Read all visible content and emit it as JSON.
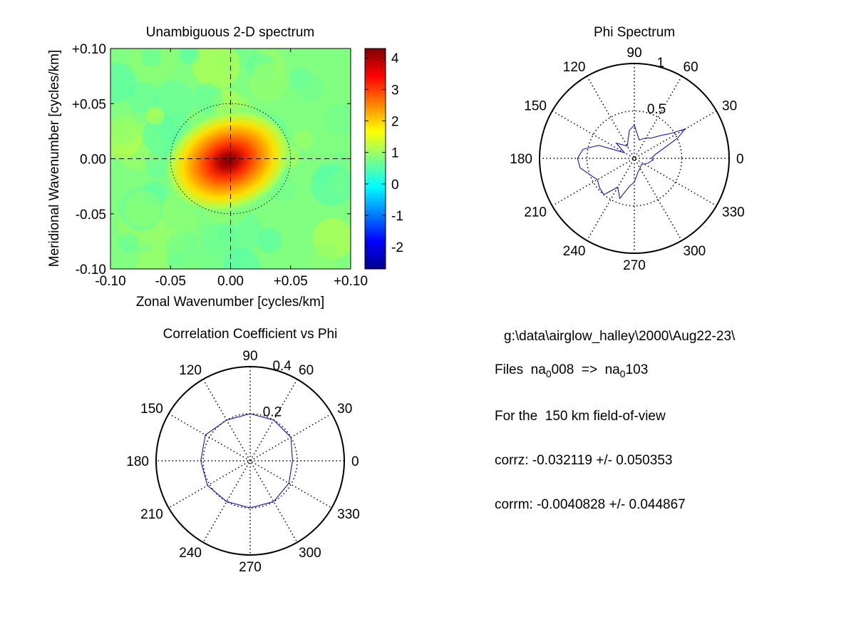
{
  "chart_data": [
    {
      "type": "heatmap",
      "title": "Unambiguous 2-D spectrum",
      "xlabel": "Zonal Wavenumber [cycles/km]",
      "ylabel": "Meridional Wavenumber [cycles/km]",
      "xlim": [
        -0.1,
        0.1
      ],
      "ylim": [
        -0.1,
        0.1
      ],
      "x_ticks": [
        "-0.10",
        "-0.05",
        "0.00",
        "+0.05",
        "+0.10"
      ],
      "y_ticks": [
        "+0.10",
        "+0.05",
        "0.00",
        "-0.05",
        "-0.10"
      ],
      "colorbar": {
        "range": [
          -2.7,
          4.3
        ],
        "ticks": [
          "4",
          "3",
          "2",
          "1",
          "0",
          "-1",
          "-2"
        ]
      },
      "peak": {
        "x": -0.002,
        "y": -0.002,
        "value": 4.3
      },
      "background_level": 0.7,
      "dotted_circle_radius": 0.05,
      "dashed_axes": true
    },
    {
      "type": "polar",
      "title": "Phi Spectrum",
      "r_max": 1,
      "r_ticks": [
        "0.5",
        "1"
      ],
      "angle_ticks": [
        "0",
        "30",
        "60",
        "90",
        "120",
        "150",
        "180",
        "210",
        "240",
        "270",
        "300",
        "330"
      ],
      "series_color": "#0000cc",
      "series": [
        {
          "angle": 0,
          "r": 0.18
        },
        {
          "angle": 10,
          "r": 0.22
        },
        {
          "angle": 20,
          "r": 0.35
        },
        {
          "angle": 25,
          "r": 0.5
        },
        {
          "angle": 30,
          "r": 0.62
        },
        {
          "angle": 35,
          "r": 0.45
        },
        {
          "angle": 40,
          "r": 0.38
        },
        {
          "angle": 50,
          "r": 0.28
        },
        {
          "angle": 60,
          "r": 0.25
        },
        {
          "angle": 75,
          "r": 0.2
        },
        {
          "angle": 90,
          "r": 0.35
        },
        {
          "angle": 100,
          "r": 0.3
        },
        {
          "angle": 120,
          "r": 0.15
        },
        {
          "angle": 140,
          "r": 0.25
        },
        {
          "angle": 150,
          "r": 0.12
        },
        {
          "angle": 160,
          "r": 0.4
        },
        {
          "angle": 170,
          "r": 0.55
        },
        {
          "angle": 180,
          "r": 0.6
        },
        {
          "angle": 190,
          "r": 0.58
        },
        {
          "angle": 200,
          "r": 0.5
        },
        {
          "angle": 210,
          "r": 0.45
        },
        {
          "angle": 220,
          "r": 0.48
        },
        {
          "angle": 230,
          "r": 0.5
        },
        {
          "angle": 240,
          "r": 0.35
        },
        {
          "angle": 250,
          "r": 0.45
        },
        {
          "angle": 260,
          "r": 0.3
        },
        {
          "angle": 270,
          "r": 0.25
        },
        {
          "angle": 285,
          "r": 0.15
        },
        {
          "angle": 300,
          "r": 0.12
        },
        {
          "angle": 320,
          "r": 0.1
        },
        {
          "angle": 340,
          "r": 0.15
        },
        {
          "angle": 355,
          "r": 0.2
        }
      ]
    },
    {
      "type": "polar",
      "title": "Correlation Coefficient vs Phi",
      "r_max": 0.4,
      "r_ticks": [
        "0.2",
        "0.4"
      ],
      "angle_ticks": [
        "0",
        "30",
        "60",
        "90",
        "120",
        "150",
        "180",
        "210",
        "240",
        "270",
        "300",
        "330"
      ],
      "series_color": "#0000cc",
      "series": [
        {
          "angle": 0,
          "r": 0.18
        },
        {
          "angle": 30,
          "r": 0.2
        },
        {
          "angle": 60,
          "r": 0.2
        },
        {
          "angle": 90,
          "r": 0.2
        },
        {
          "angle": 120,
          "r": 0.2
        },
        {
          "angle": 150,
          "r": 0.22
        },
        {
          "angle": 180,
          "r": 0.21
        },
        {
          "angle": 210,
          "r": 0.21
        },
        {
          "angle": 240,
          "r": 0.2
        },
        {
          "angle": 270,
          "r": 0.2
        },
        {
          "angle": 300,
          "r": 0.2
        },
        {
          "angle": 330,
          "r": 0.19
        }
      ]
    }
  ],
  "info": {
    "path": "g:\\data\\airglow_halley\\2000\\Aug22-23\\",
    "files_prefix": "Files  na",
    "files_sub1": "0",
    "files_mid": "008  =>  na",
    "files_sub2": "0",
    "files_end": "103",
    "fov": "For the  150 km field-of-view",
    "corrz": "corrz: -0.032119 +/- 0.050353",
    "corrm": "corrm: -0.0040828 +/- 0.044867"
  }
}
